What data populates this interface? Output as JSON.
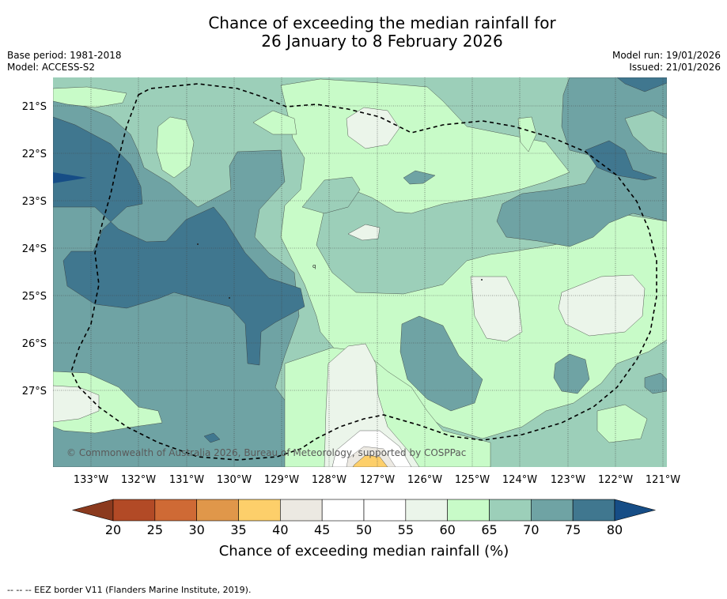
{
  "title_line1": "Chance of exceeding the median rainfall for",
  "title_line2": "26 January to 8 February 2026",
  "base_period": "Base period: 1981-2018",
  "model": "Model: ACCESS-S2",
  "model_run": "Model run: 19/01/2026",
  "issued": "Issued: 21/01/2026",
  "copyright": "© Commonwealth of Australia 2026, Bureau of Meteorology, supported by COSPPac",
  "lat_labels": [
    "21°S",
    "22°S",
    "23°S",
    "24°S",
    "25°S",
    "26°S",
    "27°S"
  ],
  "lon_labels": [
    "133°W",
    "132°W",
    "131°W",
    "130°W",
    "129°W",
    "128°W",
    "127°W",
    "126°W",
    "125°W",
    "124°W",
    "123°W",
    "122°W",
    "121°W"
  ],
  "colorbar": {
    "title": "Chance of exceeding median rainfall (%)",
    "ticks": [
      "20",
      "25",
      "30",
      "35",
      "40",
      "45",
      "50",
      "55",
      "60",
      "65",
      "70",
      "75",
      "80"
    ],
    "colors": [
      "#8b3a1e",
      "#b24a26",
      "#cf6a35",
      "#e0974a",
      "#fdcf6a",
      "#ece9e2",
      "#ffffff",
      "#ffffff",
      "#ebf5ea",
      "#c8fbc8",
      "#9ccfb9",
      "#6fa3a4",
      "#40778f",
      "#164d86"
    ]
  },
  "footer": "--  --  -- EEZ border V11 (Flanders Marine Institute, 2019).",
  "colors": {
    "c20": "#ebf5ea",
    "c65": "#c8fbc8",
    "c70": "#9ccfb9",
    "c75": "#6fa3a4",
    "c80": "#40778f",
    "c85": "#164d86",
    "c40": "#fdcf6a",
    "c45": "#ece9e2"
  }
}
